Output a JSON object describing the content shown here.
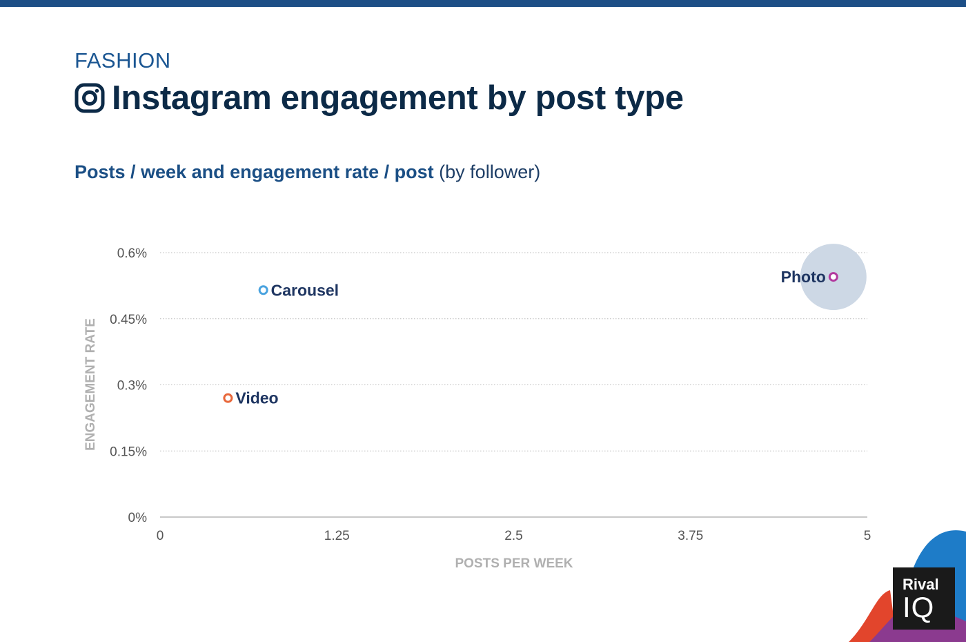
{
  "header": {
    "kicker": "FASHION",
    "title": "Instagram engagement by post type",
    "subtitle_bold": "Posts / week and engagement rate / post",
    "subtitle_normal": "(by follower)",
    "icon": "instagram-icon"
  },
  "brand": {
    "line1": "Rival",
    "line2": "IQ"
  },
  "colors": {
    "accent": "#1d4f86",
    "grid": "#b9b9b9",
    "axis_title": "#b0b0b0",
    "bubble": "#cdd8e5",
    "point_label": "#1e3561"
  },
  "chart_data": {
    "type": "scatter",
    "xlabel": "POSTS PER WEEK",
    "ylabel": "ENGAGEMENT RATE",
    "xlim": [
      0,
      5
    ],
    "ylim": [
      0,
      0.6
    ],
    "x_ticks": [
      {
        "value": 0,
        "label": "0"
      },
      {
        "value": 1.25,
        "label": "1.25"
      },
      {
        "value": 2.5,
        "label": "2.5"
      },
      {
        "value": 3.75,
        "label": "3.75"
      },
      {
        "value": 5,
        "label": "5"
      }
    ],
    "y_ticks": [
      {
        "value": 0,
        "label": "0%"
      },
      {
        "value": 0.15,
        "label": "0.15%"
      },
      {
        "value": 0.3,
        "label": "0.3%"
      },
      {
        "value": 0.45,
        "label": "0.45%"
      },
      {
        "value": 0.6,
        "label": "0.6%"
      }
    ],
    "grid": "horizontal dotted",
    "points": [
      {
        "name": "Carousel",
        "x": 0.73,
        "y": 0.515,
        "color": "#4aa3df",
        "label_side": "right",
        "highlight": false
      },
      {
        "name": "Video",
        "x": 0.48,
        "y": 0.27,
        "color": "#e8673a",
        "label_side": "right",
        "highlight": false
      },
      {
        "name": "Photo",
        "x": 4.76,
        "y": 0.545,
        "color": "#b2399e",
        "label_side": "left",
        "highlight": true
      }
    ]
  }
}
